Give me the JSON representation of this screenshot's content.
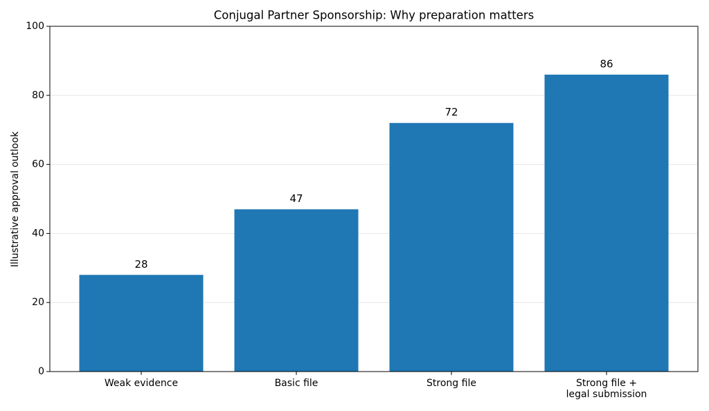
{
  "chart_data": {
    "type": "bar",
    "title": "Conjugal Partner Sponsorship: Why preparation matters",
    "ylabel": "Illustrative approval outlook",
    "categories": [
      "Weak evidence",
      "Basic file",
      "Strong file",
      "Strong file +\nlegal submission"
    ],
    "values": [
      28,
      47,
      72,
      86
    ],
    "color": "#1f77b4",
    "ylim": [
      0,
      100
    ],
    "yticks": [
      0,
      20,
      40,
      60,
      80,
      100
    ],
    "grid": true
  }
}
